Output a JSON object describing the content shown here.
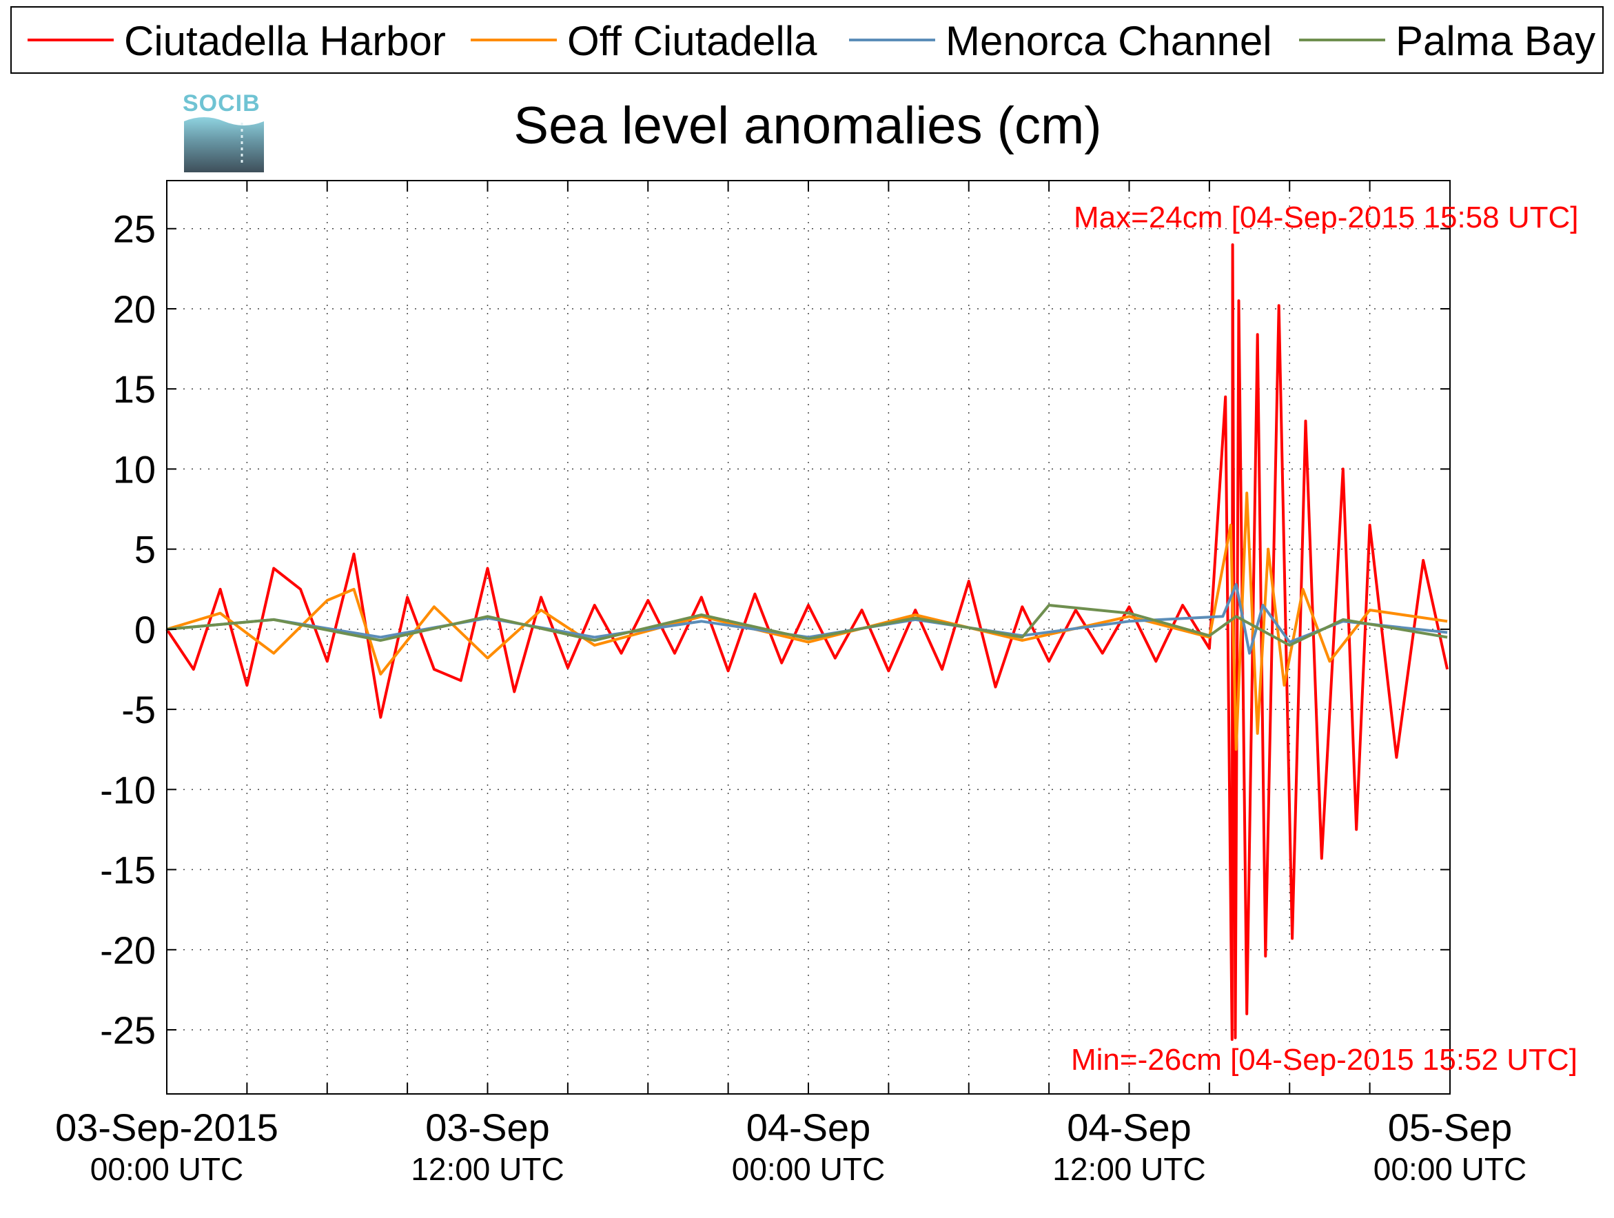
{
  "logo": {
    "text": "SOCIB"
  },
  "chart_data": {
    "type": "line",
    "title": "Sea level anomalies (cm)",
    "xlabel": "",
    "ylabel": "",
    "ylim": [
      -29,
      28
    ],
    "xlim": [
      "2015-09-03 00:00",
      "2015-09-05 00:00"
    ],
    "grid": true,
    "legend_position": "top",
    "y_ticks": [
      "25",
      "20",
      "15",
      "10",
      "5",
      "0",
      "-5",
      "-10",
      "-15",
      "-20",
      "-25"
    ],
    "x_ticks": [
      {
        "date": "03-Sep-2015",
        "time": "00:00 UTC"
      },
      {
        "date": "03-Sep",
        "time": "12:00 UTC"
      },
      {
        "date": "04-Sep",
        "time": "00:00 UTC"
      },
      {
        "date": "04-Sep",
        "time": "12:00 UTC"
      },
      {
        "date": "05-Sep",
        "time": "00:00 UTC"
      }
    ],
    "annotations": {
      "max": "Max=24cm [04-Sep-2015 15:58 UTC]",
      "min": "Min=-26cm [04-Sep-2015 15:52 UTC]"
    },
    "series": [
      {
        "name": "Ciutadella Harbor",
        "color": "#ff0000",
        "x_hours": [
          0,
          1,
          2,
          3,
          4,
          5,
          6,
          7,
          8,
          9,
          10,
          11,
          12,
          13,
          14,
          15,
          16,
          17,
          18,
          19,
          20,
          21,
          22,
          23,
          24,
          25,
          26,
          27,
          28,
          29,
          30,
          31,
          32,
          33,
          34,
          35,
          36,
          37,
          38,
          39,
          39.6,
          39.85,
          39.87,
          39.97,
          40.1,
          40.4,
          40.8,
          41.1,
          41.6,
          42.1,
          42.6,
          43.2,
          44,
          44.5,
          45,
          46,
          47,
          47.9
        ],
        "y": [
          0,
          -2.5,
          2.5,
          -3.5,
          3.8,
          2.5,
          -2,
          4.7,
          -5.5,
          2,
          -2.5,
          -3.2,
          3.8,
          -3.9,
          2,
          -2.4,
          1.5,
          -1.5,
          1.8,
          -1.5,
          2,
          -2.6,
          2.2,
          -2.1,
          1.5,
          -1.8,
          1.2,
          -2.6,
          1.2,
          -2.5,
          3,
          -3.6,
          1.4,
          -2,
          1.2,
          -1.5,
          1.4,
          -2,
          1.5,
          -1.2,
          14.5,
          -25.6,
          24,
          -25.5,
          20.5,
          -24,
          18.4,
          -20.4,
          20.2,
          -19.3,
          13,
          -14.3,
          10,
          -12.5,
          6.5,
          -8,
          4.3,
          -2.5
        ]
      },
      {
        "name": "Off Ciutadella",
        "color": "#ff8c00",
        "x_hours": [
          0,
          2,
          4,
          6,
          7,
          8,
          10,
          12,
          14,
          16,
          20,
          24,
          28,
          32,
          36,
          39,
          39.8,
          40,
          40.4,
          40.8,
          41.2,
          41.8,
          42.5,
          43.5,
          45,
          47.9
        ],
        "y": [
          0,
          1,
          -1.5,
          1.8,
          2.5,
          -2.8,
          1.4,
          -1.8,
          1.2,
          -1,
          0.8,
          -0.8,
          0.9,
          -0.7,
          0.8,
          -0.5,
          6.5,
          -7.5,
          8.5,
          -6.5,
          5,
          -3.5,
          2.5,
          -2,
          1.2,
          0.5
        ]
      },
      {
        "name": "Menorca Channel",
        "color": "#5b8db8",
        "x_hours": [
          0,
          4,
          8,
          12,
          16,
          20,
          24,
          28,
          32,
          36,
          39.5,
          40,
          40.5,
          41,
          42,
          44,
          47.9
        ],
        "y": [
          0,
          0.6,
          -0.5,
          0.7,
          -0.5,
          0.5,
          -0.5,
          0.6,
          -0.4,
          0.5,
          0.8,
          2.8,
          -1.5,
          1.5,
          -0.8,
          0.5,
          -0.2
        ]
      },
      {
        "name": "Palma Bay",
        "color": "#6f8f4f",
        "x_hours": [
          0,
          4,
          8,
          12,
          16,
          20,
          24,
          28,
          32,
          33,
          36,
          39,
          40,
          42,
          44,
          47.9
        ],
        "y": [
          0,
          0.6,
          -0.7,
          0.8,
          -0.7,
          0.9,
          -0.6,
          0.7,
          -0.5,
          1.5,
          1,
          -0.4,
          0.8,
          -1,
          0.6,
          -0.5
        ]
      }
    ]
  }
}
